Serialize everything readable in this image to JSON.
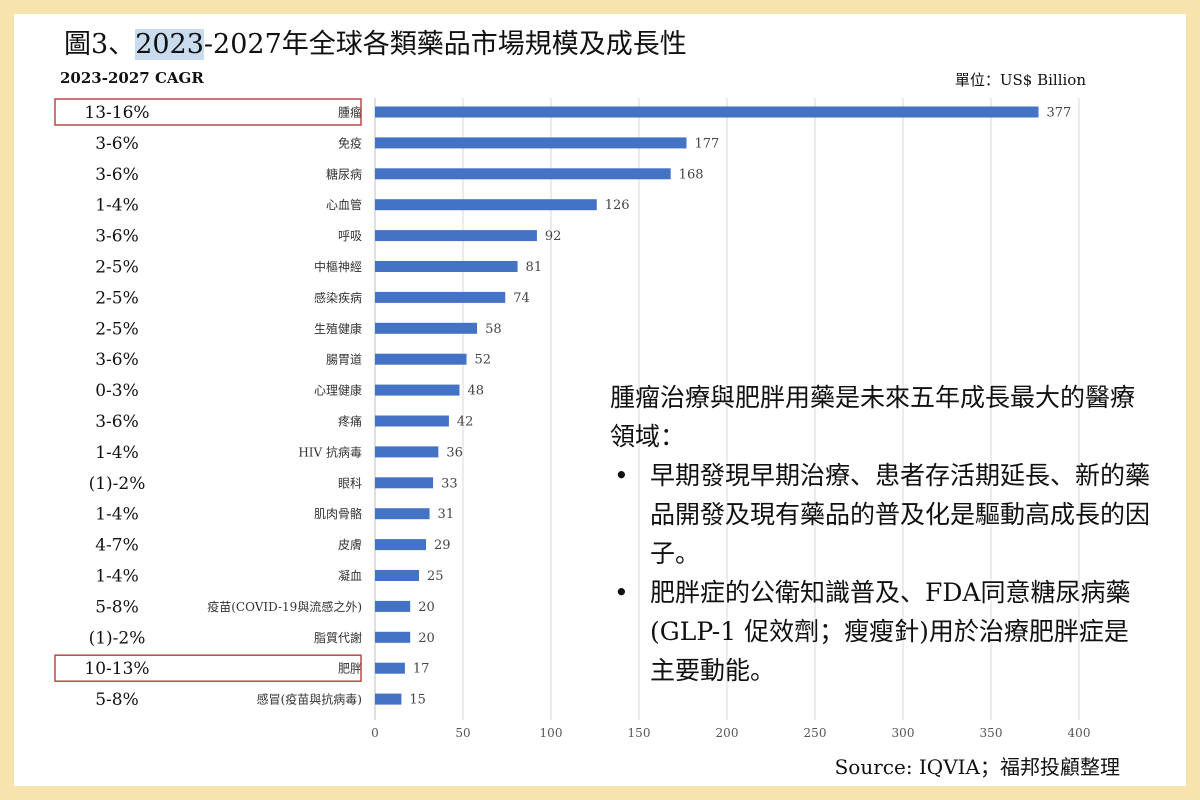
{
  "title": {
    "prefix": "圖3、",
    "highlight": "2023",
    "suffix": "-2027年全球各類藥品市場規模及成長性"
  },
  "cagr_header": "2023-2027 CAGR",
  "unit": "單位：US$ Billion",
  "source": "Source: IQVIA；福邦投顧整理",
  "note": {
    "heading": "腫瘤治療與肥胖用藥是未來五年成長最大的醫療領域：",
    "bullets": [
      "早期發現早期治療、患者存活期延長、新的藥品開發及現有藥品的普及化是驅動高成長的因子。",
      "肥胖症的公衛知識普及、FDA同意糖尿病藥(GLP-1 促效劑；瘦瘦針)用於治療肥胖症是主要動能。"
    ],
    "bullet_symbol": "•"
  },
  "chart_data": {
    "type": "bar",
    "orientation": "horizontal",
    "categories": [
      "腫瘤",
      "免疫",
      "糖尿病",
      "心血管",
      "呼吸",
      "中樞神經",
      "感染疾病",
      "生殖健康",
      "腸胃道",
      "心理健康",
      "疼痛",
      "HIV 抗病毒",
      "眼科",
      "肌肉骨骼",
      "皮膚",
      "凝血",
      "疫苗(COVID-19與流感之外)",
      "脂質代謝",
      "肥胖",
      "感冒(疫苗與抗病毒)"
    ],
    "values": [
      377,
      177,
      168,
      126,
      92,
      81,
      74,
      58,
      52,
      48,
      42,
      36,
      33,
      31,
      29,
      25,
      20,
      20,
      17,
      15
    ],
    "cagr": [
      "13-16%",
      "3-6%",
      "3-6%",
      "1-4%",
      "3-6%",
      "2-5%",
      "2-5%",
      "2-5%",
      "3-6%",
      "0-3%",
      "3-6%",
      "1-4%",
      "(1)-2%",
      "1-4%",
      "4-7%",
      "1-4%",
      "5-8%",
      "(1)-2%",
      "10-13%",
      "5-8%"
    ],
    "highlighted": [
      "腫瘤",
      "肥胖"
    ],
    "xlim": [
      0,
      400
    ],
    "xticks": [
      0,
      50,
      100,
      150,
      200,
      250,
      300,
      350,
      400
    ],
    "grid": true,
    "bar_color": "#4472c4",
    "highlight_box_color": "#b84a4a"
  }
}
